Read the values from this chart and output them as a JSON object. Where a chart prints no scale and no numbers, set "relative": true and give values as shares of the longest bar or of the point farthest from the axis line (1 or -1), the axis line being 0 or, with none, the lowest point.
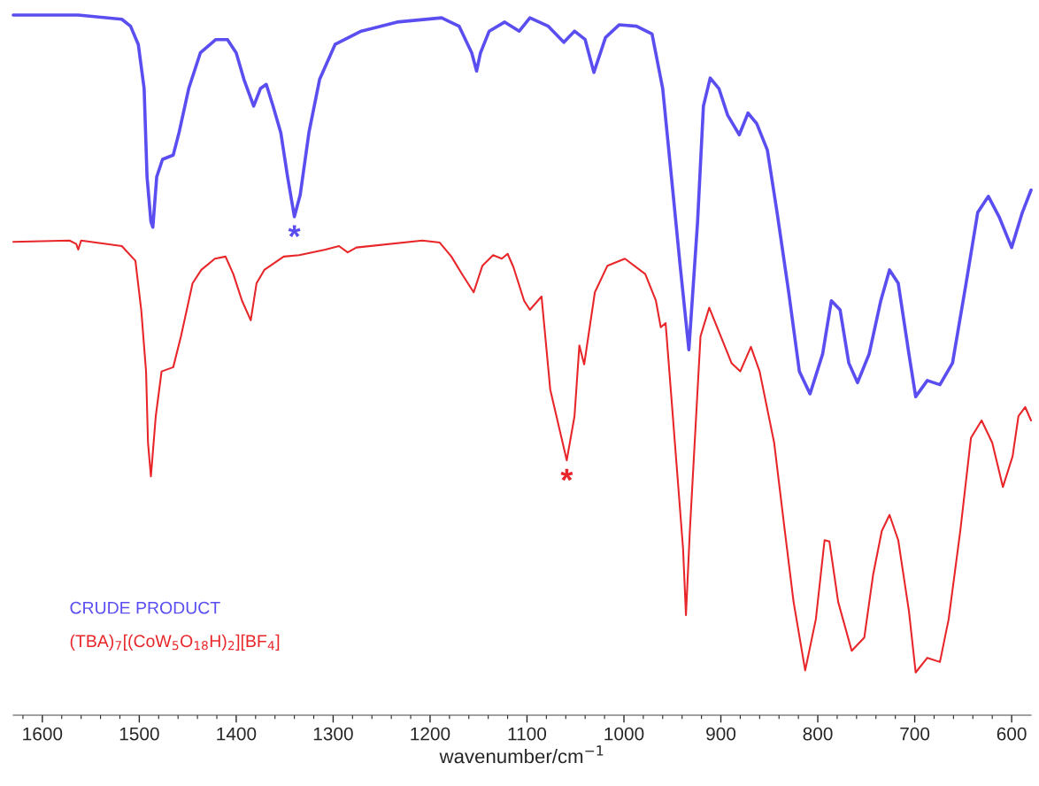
{
  "chart_data": {
    "type": "line",
    "relative": true,
    "xlabel": "wavenumber/cm$^{−1}$",
    "xlim": [
      1630,
      580
    ],
    "xticks": [
      {
        "value": 1620,
        "label": null
      },
      1600,
      {
        "value": 1580,
        "label": null
      },
      {
        "value": 1560,
        "label": null
      },
      {
        "value": 1540,
        "label": null
      },
      {
        "value": 1520,
        "label": null
      },
      1500,
      {
        "value": 1480,
        "label": null
      },
      {
        "value": 1460,
        "label": null
      },
      {
        "value": 1440,
        "label": null
      },
      {
        "value": 1420,
        "label": null
      },
      1400,
      {
        "value": 1380,
        "label": null
      },
      {
        "value": 1360,
        "label": null
      },
      {
        "value": 1340,
        "label": null
      },
      {
        "value": 1320,
        "label": null
      },
      1300,
      {
        "value": 1280,
        "label": null
      },
      {
        "value": 1260,
        "label": null
      },
      {
        "value": 1240,
        "label": null
      },
      {
        "value": 1220,
        "label": null
      },
      1200,
      {
        "value": 1180,
        "label": null
      },
      {
        "value": 1160,
        "label": null
      },
      {
        "value": 1140,
        "label": null
      },
      {
        "value": 1120,
        "label": null
      },
      1100,
      {
        "value": 1080,
        "label": null
      },
      {
        "value": 1060,
        "label": null
      },
      {
        "value": 1040,
        "label": null
      },
      {
        "value": 1020,
        "label": null
      },
      1000,
      {
        "value": 980,
        "label": null
      },
      {
        "value": 960,
        "label": null
      },
      {
        "value": 940,
        "label": null
      },
      {
        "value": 920,
        "label": null
      },
      900,
      {
        "value": 880,
        "label": null
      },
      {
        "value": 860,
        "label": null
      },
      {
        "value": 840,
        "label": null
      },
      {
        "value": 820,
        "label": null
      },
      800,
      {
        "value": 780,
        "label": null
      },
      {
        "value": 760,
        "label": null
      },
      {
        "value": 740,
        "label": null
      },
      {
        "value": 720,
        "label": null
      },
      700,
      {
        "value": 680,
        "label": null
      },
      {
        "value": 660,
        "label": null
      },
      {
        "value": 640,
        "label": null
      },
      {
        "value": 620,
        "label": null
      },
      600
    ],
    "legend": "bottom left",
    "grid": false,
    "tick_labels": "x",
    "annotations": [
      {
        "text": "*",
        "x": 1340,
        "y": 0.712
      },
      {
        "text": "*",
        "x": 1059,
        "y": 0.364
      }
    ],
    "series": [
      {
        "name": "CRUDE PRODUCT",
        "color": "#5b4ef0",
        "x": [
          1630,
          1563,
          1518,
          1509,
          1501,
          1495,
          1492,
          1488,
          1486,
          1482,
          1476,
          1465,
          1459,
          1449,
          1437,
          1421,
          1409,
          1400,
          1392,
          1382,
          1375,
          1369,
          1362,
          1354,
          1347,
          1340,
          1334,
          1325,
          1314,
          1298,
          1271,
          1234,
          1188,
          1170,
          1157,
          1152,
          1148,
          1139,
          1123,
          1108,
          1097,
          1078,
          1062,
          1051,
          1040,
          1031,
          1019,
          1005,
          987,
          971,
          960,
          951,
          942,
          933,
          924,
          918,
          911,
          902,
          893,
          881,
          872,
          863,
          852,
          842,
          830,
          819,
          808,
          795,
          786,
          777,
          768,
          759,
          747,
          735,
          726,
          717,
          706,
          699,
          687,
          674,
          661,
          647,
          635,
          624,
          613,
          600,
          589,
          580
        ],
        "values": [
          1,
          1,
          0.994,
          0.984,
          0.958,
          0.895,
          0.769,
          0.705,
          0.697,
          0.769,
          0.794,
          0.8,
          0.832,
          0.895,
          0.946,
          0.965,
          0.965,
          0.946,
          0.908,
          0.87,
          0.895,
          0.901,
          0.87,
          0.832,
          0.769,
          0.712,
          0.743,
          0.832,
          0.908,
          0.958,
          0.977,
          0.99,
          0.996,
          0.984,
          0.946,
          0.92,
          0.946,
          0.977,
          0.99,
          0.977,
          0.996,
          0.984,
          0.961,
          0.977,
          0.965,
          0.918,
          0.968,
          0.986,
          0.984,
          0.973,
          0.895,
          0.769,
          0.642,
          0.522,
          0.705,
          0.87,
          0.91,
          0.895,
          0.857,
          0.829,
          0.86,
          0.845,
          0.807,
          0.718,
          0.604,
          0.491,
          0.459,
          0.516,
          0.592,
          0.579,
          0.503,
          0.475,
          0.516,
          0.592,
          0.636,
          0.617,
          0.516,
          0.455,
          0.478,
          0.472,
          0.503,
          0.617,
          0.718,
          0.741,
          0.712,
          0.668,
          0.718,
          0.75
        ]
      },
      {
        "name": "(TBA)$_{7}$[(CoW$_{5}$O$_{18}$H)$_{2}$][BF$_{4}$]",
        "color": "#e8262a",
        "x": [
          1630,
          1572,
          1565,
          1563,
          1560,
          1518,
          1504,
          1498,
          1493,
          1491,
          1488,
          1483,
          1477,
          1465,
          1457,
          1445,
          1436,
          1422,
          1411,
          1403,
          1394,
          1385,
          1379,
          1371,
          1351,
          1335,
          1308,
          1294,
          1285,
          1276,
          1208,
          1190,
          1178,
          1167,
          1155,
          1146,
          1135,
          1126,
          1120,
          1114,
          1103,
          1097,
          1085,
          1076,
          1059,
          1051,
          1046,
          1041,
          1030,
          1017,
          999,
          978,
          967,
          962,
          957,
          951,
          939,
          936,
          932,
          921,
          912,
          900,
          889,
          880,
          869,
          860,
          845,
          834,
          825,
          813,
          802,
          793,
          788,
          779,
          765,
          752,
          743,
          734,
          726,
          717,
          706,
          699,
          687,
          674,
          665,
          653,
          642,
          631,
          620,
          609,
          599,
          593,
          586,
          580
        ],
        "values": [
          0.676,
          0.678,
          0.673,
          0.665,
          0.678,
          0.67,
          0.649,
          0.579,
          0.491,
          0.389,
          0.341,
          0.427,
          0.491,
          0.497,
          0.541,
          0.617,
          0.636,
          0.652,
          0.655,
          0.63,
          0.592,
          0.564,
          0.617,
          0.636,
          0.655,
          0.657,
          0.665,
          0.67,
          0.661,
          0.668,
          0.678,
          0.675,
          0.655,
          0.63,
          0.604,
          0.642,
          0.657,
          0.652,
          0.659,
          0.64,
          0.592,
          0.579,
          0.598,
          0.465,
          0.364,
          0.427,
          0.528,
          0.501,
          0.604,
          0.642,
          0.652,
          0.63,
          0.592,
          0.554,
          0.56,
          0.453,
          0.238,
          0.143,
          0.263,
          0.541,
          0.582,
          0.541,
          0.503,
          0.491,
          0.526,
          0.491,
          0.389,
          0.263,
          0.162,
          0.064,
          0.137,
          0.25,
          0.248,
          0.162,
          0.092,
          0.111,
          0.2,
          0.263,
          0.286,
          0.25,
          0.149,
          0.061,
          0.082,
          0.076,
          0.137,
          0.263,
          0.396,
          0.421,
          0.389,
          0.326,
          0.37,
          0.427,
          0.44,
          0.421
        ]
      }
    ]
  }
}
